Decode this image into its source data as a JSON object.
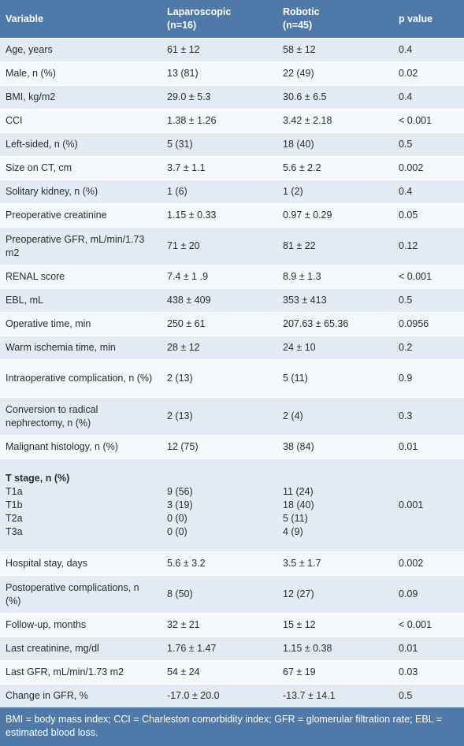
{
  "header": {
    "variable": "Variable",
    "laparoscopic": "Laparoscopic",
    "laparoscopic_n": "(n=16)",
    "robotic": "Robotic",
    "robotic_n": "(n=45)",
    "p_value": "p value"
  },
  "rows": [
    {
      "variable": "Age, years",
      "lap": "61 ± 12",
      "rob": "58 ± 12",
      "p": "0.4"
    },
    {
      "variable": "Male, n (%)",
      "lap": "13 (81)",
      "rob": "22 (49)",
      "p": "0.02"
    },
    {
      "variable": "BMI, kg/m2",
      "lap": "29.0 ± 5.3",
      "rob": "30.6 ± 6.5",
      "p": "0.4"
    },
    {
      "variable": "CCI",
      "lap": "1.38 ± 1.26",
      "rob": "3.42 ± 2.18",
      "p": "< 0.001"
    },
    {
      "variable": "Left-sided, n (%)",
      "lap": "5 (31)",
      "rob": "18 (40)",
      "p": "0.5"
    },
    {
      "variable": "Size on CT, cm",
      "lap": "3.7 ± 1.1",
      "rob": "5.6 ± 2.2",
      "p": "0.002"
    },
    {
      "variable": "Solitary kidney, n (%)",
      "lap": "1 (6)",
      "rob": "1 (2)",
      "p": "0.4"
    },
    {
      "variable": "Preoperative creatinine",
      "lap": "1.15 ± 0.33",
      "rob": "0.97 ± 0.29",
      "p": "0.05"
    },
    {
      "variable": "Preoperative GFR, mL/min/1.73 m2",
      "lap": "71 ± 20",
      "rob": "81 ± 22",
      "p": "0.12"
    },
    {
      "variable": "RENAL score",
      "lap": "7.4 ± 1 .9",
      "rob": "8.9 ± 1.3",
      "p": "< 0.001"
    },
    {
      "variable": "EBL, mL",
      "lap": "438 ± 409",
      "rob": "353 ± 413",
      "p": "0.5"
    },
    {
      "variable": "Operative time, min",
      "lap": "250 ± 61",
      "rob": "207.63 ± 65.36",
      "p": "0.0956"
    },
    {
      "variable": "Warm ischemia time, min",
      "lap": "28 ± 12",
      "rob": "24 ± 10",
      "p": "0.2"
    },
    {
      "variable": "Intraoperative complication, n (%)",
      "lap": "2 (13)",
      "rob": "5 (11)",
      "p": "0.9"
    },
    {
      "variable": "Conversion to radical nephrectomy, n (%)",
      "lap": "2 (13)",
      "rob": "2 (4)",
      "p": "0.3"
    },
    {
      "variable": "Malignant histology, n (%)",
      "lap": "12 (75)",
      "rob": "38 (84)",
      "p": "0.01"
    }
  ],
  "t_stage": {
    "title": "T stage, n (%)",
    "stages": [
      "T1a",
      "T1b",
      "T2a",
      "T3a"
    ],
    "lap": [
      "9 (56)",
      "3 (19)",
      "0 (0)",
      "0 (0)"
    ],
    "rob": [
      "11 (24)",
      "18 (40)",
      "5 (11)",
      "4 (9)"
    ],
    "p": "0.001"
  },
  "rows_after": [
    {
      "variable": "Hospital stay, days",
      "lap": "5.6 ± 3.2",
      "rob": "3.5 ± 1.7",
      "p": "0.002"
    },
    {
      "variable": "Postoperative complications, n (%)",
      "lap": "8 (50)",
      "rob": "12 (27)",
      "p": "0.09"
    },
    {
      "variable": "Follow-up, months",
      "lap": "32 ± 21",
      "rob": "15 ± 12",
      "p": "< 0.001"
    },
    {
      "variable": "Last creatinine, mg/dl",
      "lap": "1.76 ± 1.47",
      "rob": "1.15 ± 0.38",
      "p": "0.01"
    },
    {
      "variable": "Last GFR, mL/min/1.73 m2",
      "lap": "54 ± 24",
      "rob": "67 ± 19",
      "p": "0.03"
    },
    {
      "variable": "Change in GFR, %",
      "lap": "-17.0 ± 20.0",
      "rob": "-13.7 ± 14.1",
      "p": "0.5"
    }
  ],
  "footnote": "BMI = body mass index; CCI = Charleston comorbidity index; GFR = glomerular filtration rate; EBL = estimated blood loss."
}
